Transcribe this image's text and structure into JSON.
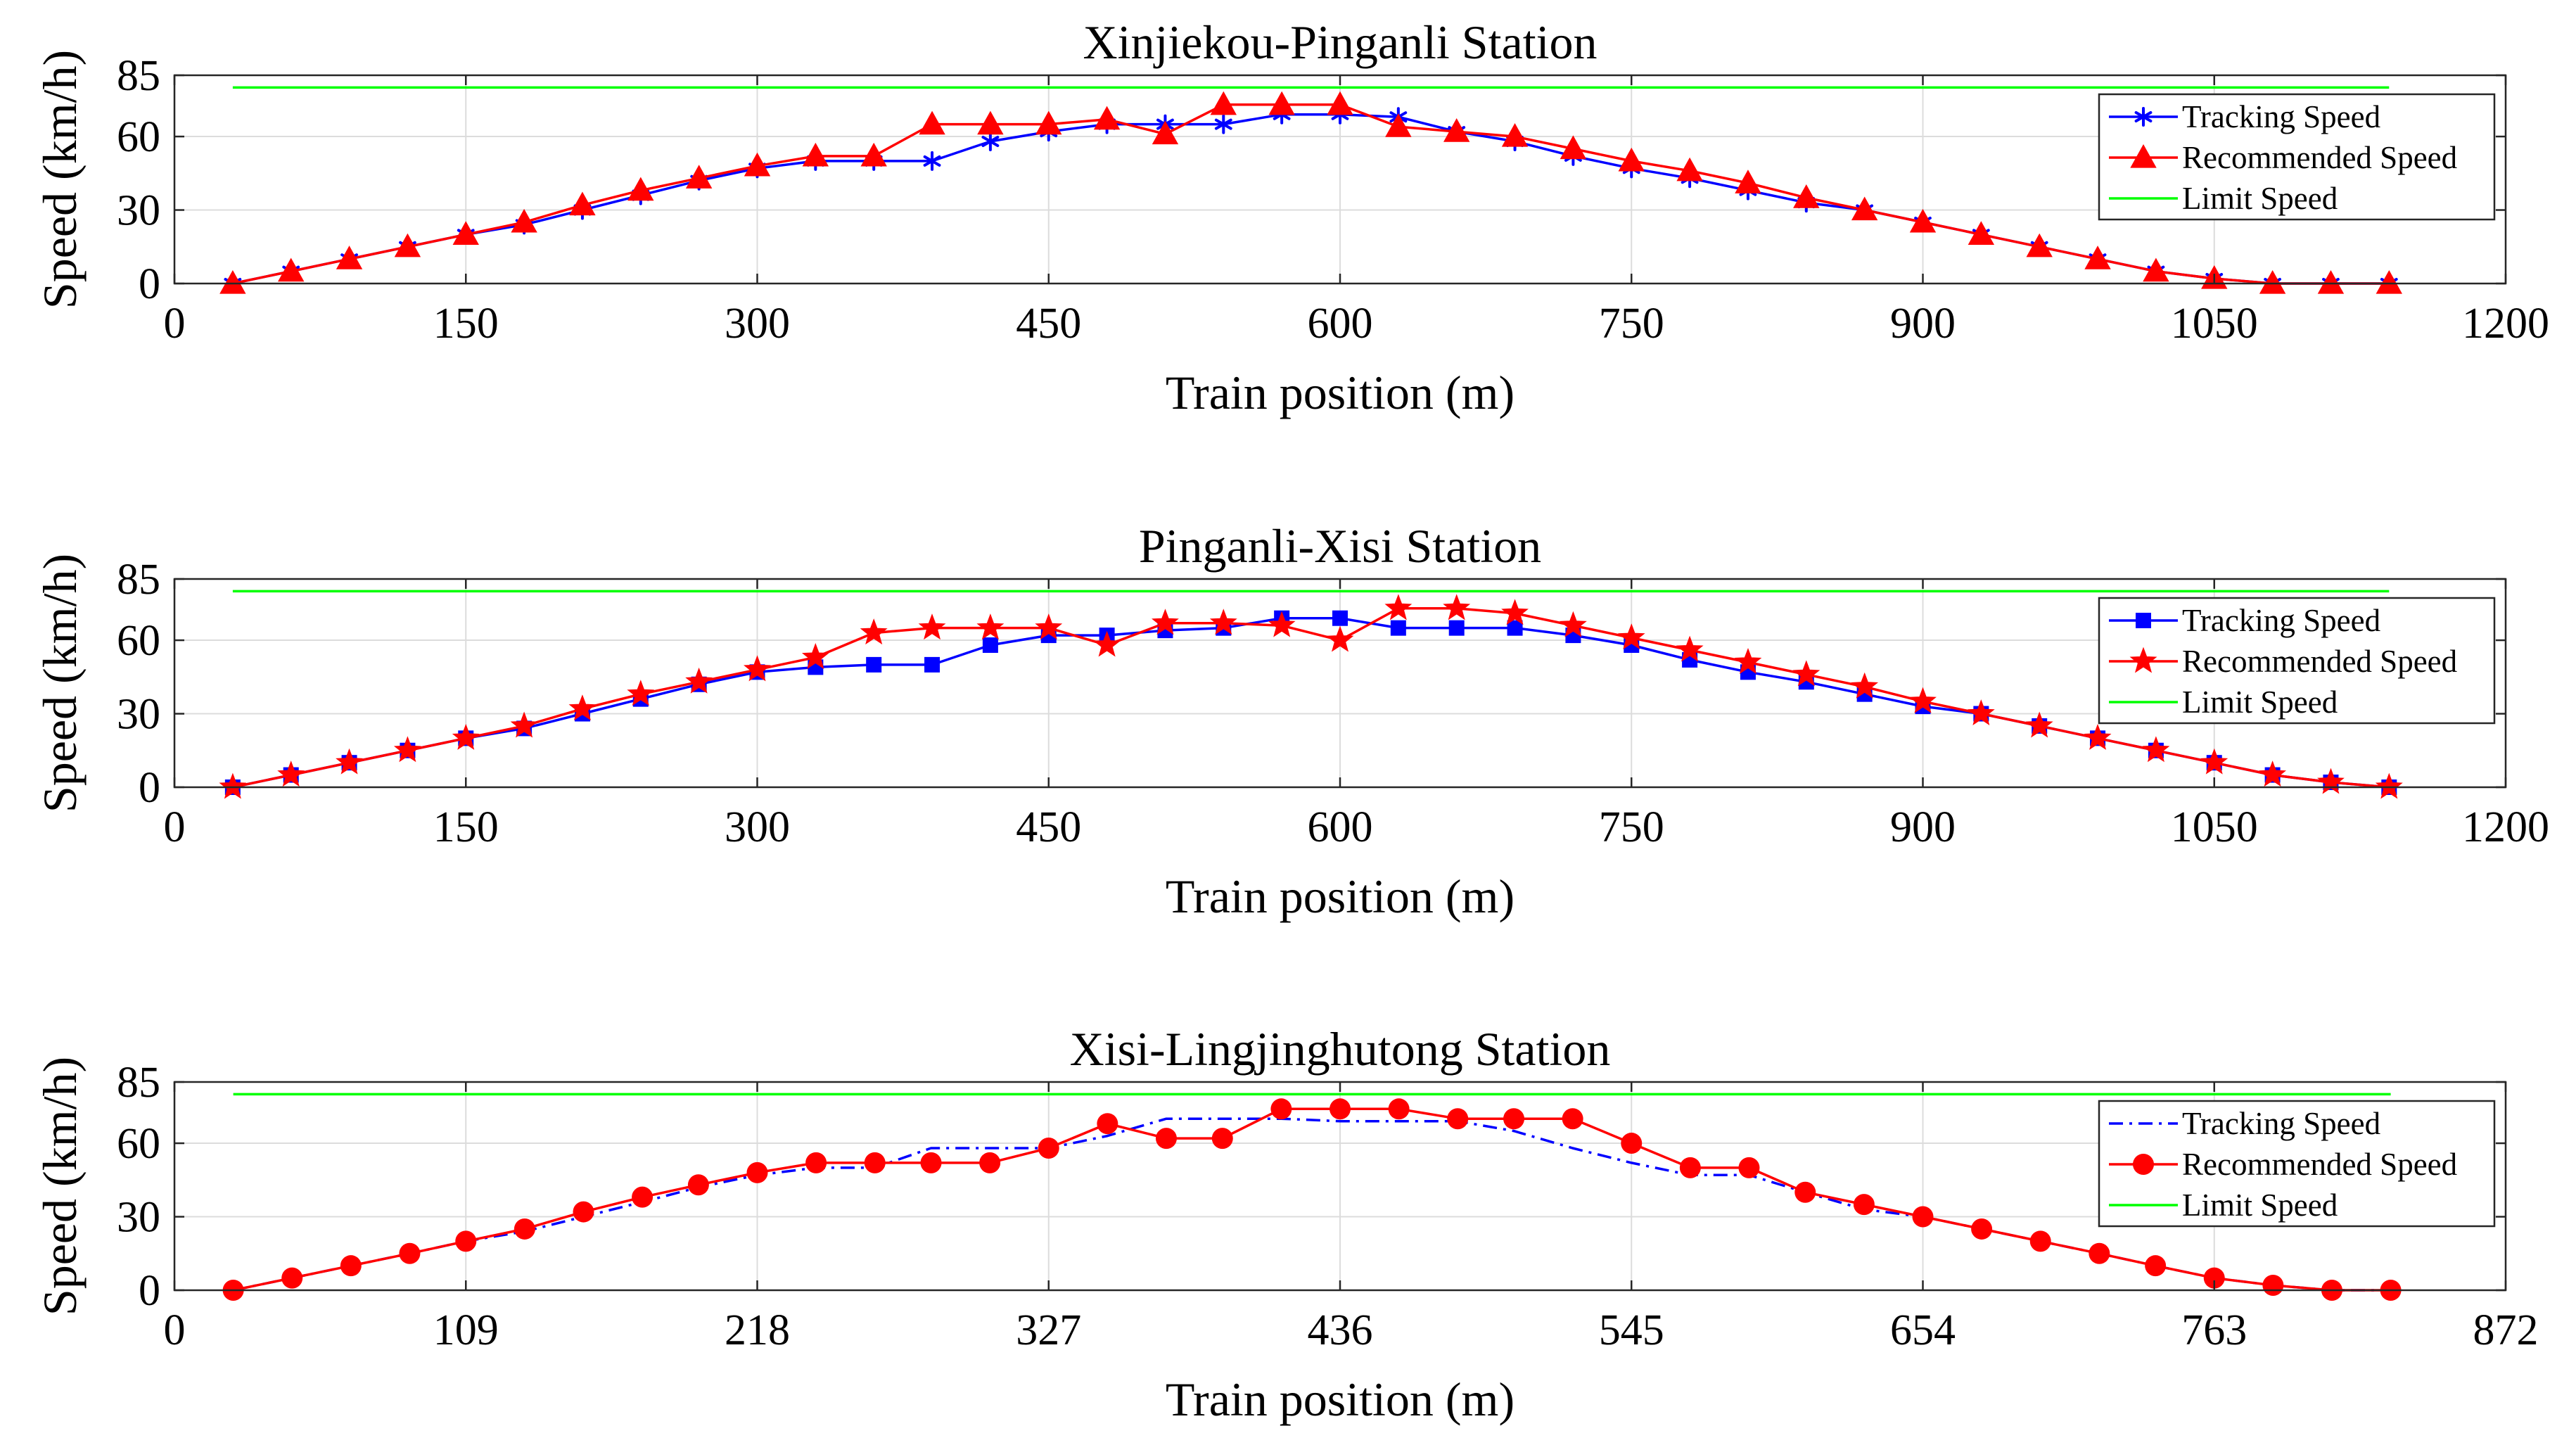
{
  "chart_data": [
    {
      "type": "line",
      "title": "Xinjiekou-Pinganli Station",
      "xlabel": "Train position (m)",
      "ylabel": "Speed (km/h)",
      "xlim": [
        0,
        1200
      ],
      "ylim": [
        0,
        85
      ],
      "xticks": [
        0,
        150,
        300,
        450,
        600,
        750,
        900,
        1050,
        1200
      ],
      "yticks": [
        0,
        30,
        60,
        85
      ],
      "grid": true,
      "legend_position": "top-right",
      "series": [
        {
          "name": "Tracking Speed",
          "color": "#0000ff",
          "marker": "asterisk",
          "line": "solid",
          "x": [
            30,
            60,
            90,
            120,
            150,
            180,
            210,
            240,
            270,
            300,
            330,
            360,
            390,
            420,
            450,
            480,
            510,
            540,
            570,
            600,
            630,
            660,
            690,
            720,
            750,
            780,
            810,
            840,
            870,
            900,
            930,
            960,
            990,
            1020,
            1050,
            1080,
            1110,
            1140
          ],
          "values": [
            0,
            5,
            10,
            15,
            20,
            24,
            30,
            36,
            42,
            47,
            50,
            50,
            50,
            58,
            62,
            65,
            65,
            65,
            69,
            69,
            68,
            62,
            58,
            52,
            47,
            43,
            38,
            33,
            30,
            25,
            20,
            15,
            10,
            5,
            2,
            0,
            0,
            0
          ]
        },
        {
          "name": "Recommended Speed",
          "color": "#ff0000",
          "marker": "triangle",
          "line": "solid",
          "x": [
            30,
            60,
            90,
            120,
            150,
            180,
            210,
            240,
            270,
            300,
            330,
            360,
            390,
            420,
            450,
            480,
            510,
            540,
            570,
            600,
            630,
            660,
            690,
            720,
            750,
            780,
            810,
            840,
            870,
            900,
            930,
            960,
            990,
            1020,
            1050,
            1080,
            1110,
            1140
          ],
          "values": [
            0,
            5,
            10,
            15,
            20,
            25,
            32,
            38,
            43,
            48,
            52,
            52,
            65,
            65,
            65,
            67,
            61,
            73,
            73,
            73,
            64,
            62,
            60,
            55,
            50,
            46,
            41,
            35,
            30,
            25,
            20,
            15,
            10,
            5,
            2,
            0,
            0,
            0
          ]
        },
        {
          "name": "Limit Speed",
          "color": "#00ff00",
          "marker": "none",
          "line": "solid",
          "x": [
            30,
            1140
          ],
          "values": [
            80,
            80
          ]
        }
      ]
    },
    {
      "type": "line",
      "title": "Pinganli-Xisi Station",
      "xlabel": "Train position (m)",
      "ylabel": "Speed (km/h)",
      "xlim": [
        0,
        1200
      ],
      "ylim": [
        0,
        85
      ],
      "xticks": [
        0,
        150,
        300,
        450,
        600,
        750,
        900,
        1050,
        1200
      ],
      "yticks": [
        0,
        30,
        60,
        85
      ],
      "grid": true,
      "legend_position": "top-right",
      "series": [
        {
          "name": "Tracking Speed",
          "color": "#0000ff",
          "marker": "square",
          "line": "solid",
          "x": [
            30,
            60,
            90,
            120,
            150,
            180,
            210,
            240,
            270,
            300,
            330,
            360,
            390,
            420,
            450,
            480,
            510,
            540,
            570,
            600,
            630,
            660,
            690,
            720,
            750,
            780,
            810,
            840,
            870,
            900,
            930,
            960,
            990,
            1020,
            1050,
            1080,
            1110,
            1140
          ],
          "values": [
            0,
            5,
            10,
            15,
            20,
            24,
            30,
            36,
            42,
            47,
            49,
            50,
            50,
            58,
            62,
            62,
            64,
            65,
            69,
            69,
            65,
            65,
            65,
            62,
            58,
            52,
            47,
            43,
            38,
            33,
            30,
            25,
            20,
            15,
            10,
            5,
            2,
            0
          ]
        },
        {
          "name": "Recommended Speed",
          "color": "#ff0000",
          "marker": "star",
          "line": "solid",
          "x": [
            30,
            60,
            90,
            120,
            150,
            180,
            210,
            240,
            270,
            300,
            330,
            360,
            390,
            420,
            450,
            480,
            510,
            540,
            570,
            600,
            630,
            660,
            690,
            720,
            750,
            780,
            810,
            840,
            870,
            900,
            930,
            960,
            990,
            1020,
            1050,
            1080,
            1110,
            1140
          ],
          "values": [
            0,
            5,
            10,
            15,
            20,
            25,
            32,
            38,
            43,
            48,
            53,
            63,
            65,
            65,
            65,
            58,
            67,
            67,
            66,
            60,
            73,
            73,
            71,
            66,
            61,
            56,
            51,
            46,
            41,
            35,
            30,
            25,
            20,
            15,
            10,
            5,
            2,
            0
          ]
        },
        {
          "name": "Limit Speed",
          "color": "#00ff00",
          "marker": "none",
          "line": "solid",
          "x": [
            30,
            1140
          ],
          "values": [
            80,
            80
          ]
        }
      ]
    },
    {
      "type": "line",
      "title": "Xisi-Lingjinghutong Station",
      "xlabel": "Train position (m)",
      "ylabel": "Speed (km/h)",
      "xlim": [
        0,
        872
      ],
      "ylim": [
        0,
        85
      ],
      "xticks": [
        0,
        109,
        218,
        327,
        436,
        545,
        654,
        763,
        872
      ],
      "yticks": [
        0,
        30,
        60,
        85
      ],
      "grid": true,
      "legend_position": "top-right",
      "series": [
        {
          "name": "Tracking Speed",
          "color": "#0000ff",
          "marker": "none",
          "line": "dashdot",
          "x": [
            22,
            44,
            66,
            88,
            109,
            131,
            153,
            175,
            196,
            218,
            240,
            262,
            283,
            305,
            327,
            349,
            371,
            392,
            414,
            436,
            458,
            480,
            501,
            523,
            545,
            567,
            589,
            610,
            632,
            654,
            676,
            698,
            720,
            741,
            763,
            785,
            807,
            829
          ],
          "values": [
            0,
            5,
            10,
            15,
            20,
            24,
            30,
            36,
            42,
            47,
            50,
            50,
            58,
            58,
            58,
            63,
            70,
            70,
            70,
            69,
            69,
            69,
            65,
            58,
            52,
            47,
            47,
            40,
            33,
            30,
            25,
            20,
            15,
            10,
            5,
            2,
            0,
            0
          ]
        },
        {
          "name": "Recommended Speed",
          "color": "#ff0000",
          "marker": "circle",
          "line": "solid",
          "x": [
            22,
            44,
            66,
            88,
            109,
            131,
            153,
            175,
            196,
            218,
            240,
            262,
            283,
            305,
            327,
            349,
            371,
            392,
            414,
            436,
            458,
            480,
            501,
            523,
            545,
            567,
            589,
            610,
            632,
            654,
            676,
            698,
            720,
            741,
            763,
            785,
            807,
            829
          ],
          "values": [
            0,
            5,
            10,
            15,
            20,
            25,
            32,
            38,
            43,
            48,
            52,
            52,
            52,
            52,
            58,
            68,
            62,
            62,
            74,
            74,
            74,
            70,
            70,
            70,
            60,
            50,
            50,
            40,
            35,
            30,
            25,
            20,
            15,
            10,
            5,
            2,
            0,
            0
          ]
        },
        {
          "name": "Limit Speed",
          "color": "#00ff00",
          "marker": "none",
          "line": "solid",
          "x": [
            22,
            829
          ],
          "values": [
            80,
            80
          ]
        }
      ]
    }
  ]
}
